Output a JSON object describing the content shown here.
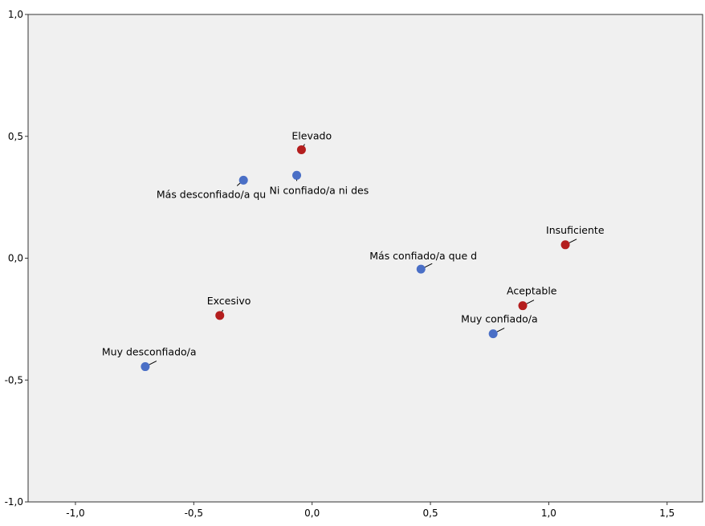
{
  "chart_data": {
    "type": "scatter",
    "title": "",
    "xlabel": "",
    "ylabel": "",
    "xlim": [
      -1.2,
      1.65
    ],
    "ylim": [
      -1.0,
      1.0
    ],
    "x_ticks": [
      "-1,0",
      "-0,5",
      "0,0",
      "0,5",
      "1,0",
      "1,5"
    ],
    "x_tick_values": [
      -1.0,
      -0.5,
      0.0,
      0.5,
      1.0,
      1.5
    ],
    "y_ticks": [
      "1,0",
      "0,5",
      "0,0",
      "-0,5",
      "-1,0"
    ],
    "y_tick_values": [
      1.0,
      0.5,
      0.0,
      -0.5,
      -1.0
    ],
    "grid": false,
    "background_color": "#f0f0f0",
    "series": [
      {
        "color": "#4a6fc6",
        "points": [
          {
            "label": "Más desconfiado/a qu",
            "x": -0.29,
            "y": 0.32
          },
          {
            "label": "Ni confiado/a ni des",
            "x": -0.065,
            "y": 0.34
          },
          {
            "label": "Más confiado/a que d",
            "x": 0.46,
            "y": -0.045
          },
          {
            "label": "Muy confiado/a",
            "x": 0.765,
            "y": -0.31
          },
          {
            "label": "Muy desconfiado/a",
            "x": -0.705,
            "y": -0.445
          }
        ]
      },
      {
        "color": "#b41e1e",
        "points": [
          {
            "label": "Elevado",
            "x": -0.045,
            "y": 0.445
          },
          {
            "label": "Insuficiente",
            "x": 1.07,
            "y": 0.055
          },
          {
            "label": "Aceptable",
            "x": 0.89,
            "y": -0.195
          },
          {
            "label": "Excesivo",
            "x": -0.39,
            "y": -0.235
          }
        ]
      }
    ]
  }
}
